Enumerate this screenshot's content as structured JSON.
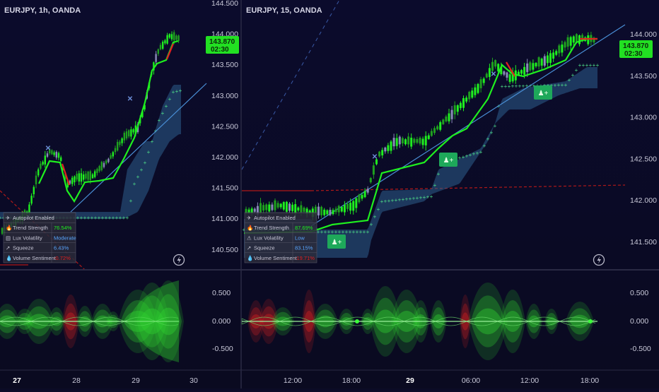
{
  "colors": {
    "background": "#0b0b26",
    "bull": "#1fef1f",
    "bear": "#e02020",
    "band": "#2e5e8c",
    "price_tag": "#22e022",
    "trend_line": "#4a8fd6"
  },
  "left_chart": {
    "title": "EURJPY, 1h, OANDA",
    "price_axis": [
      "144.500",
      "144.000",
      "143.500",
      "143.000",
      "142.500",
      "142.000",
      "141.500",
      "141.000",
      "140.500"
    ],
    "price_tag": {
      "price": "143.870",
      "countdown": "02:30"
    },
    "time_axis": [
      {
        "label": "27",
        "bold": true
      },
      {
        "label": "28",
        "bold": false
      },
      {
        "label": "29",
        "bold": false
      },
      {
        "label": "30",
        "bold": false
      }
    ],
    "stats": [
      {
        "icon": "airplane-icon",
        "label": "Autopilot Enabled",
        "value": ""
      },
      {
        "icon": "flame-icon",
        "label": "Trend Strength",
        "value": "76.54%",
        "color": "#1fef1f"
      },
      {
        "icon": "bars-icon",
        "label": "Lux Volatility",
        "value": "Moderate",
        "color": "#58a6ff"
      },
      {
        "icon": "squeeze-icon",
        "label": "Squeeze",
        "value": "6.43%",
        "color": "#58a6ff"
      },
      {
        "icon": "drop-icon",
        "label": "Volume Sentiment",
        "value": "-0.72%",
        "color": "#e02020"
      }
    ],
    "osc_axis": [
      "0.500",
      "0.000",
      "-0.500"
    ]
  },
  "right_chart": {
    "title": "EURJPY, 15, OANDA",
    "price_axis": [
      "144.000",
      "143.500",
      "143.000",
      "142.500",
      "142.000",
      "141.500"
    ],
    "price_tag": {
      "price": "143.870",
      "countdown": "02:30"
    },
    "time_axis": [
      {
        "label": "12:00",
        "bold": false
      },
      {
        "label": "18:00",
        "bold": false
      },
      {
        "label": "29",
        "bold": true
      },
      {
        "label": "06:00",
        "bold": false
      },
      {
        "label": "12:00",
        "bold": false
      },
      {
        "label": "18:00",
        "bold": false
      }
    ],
    "stats": [
      {
        "icon": "airplane-icon",
        "label": "Autopilot Enabled",
        "value": ""
      },
      {
        "icon": "flame-icon",
        "label": "Trend Strength",
        "value": "87.69%",
        "color": "#1fef1f"
      },
      {
        "icon": "warning-icon",
        "label": "Lux Volatility",
        "value": "Low",
        "color": "#58a6ff"
      },
      {
        "icon": "squeeze-icon",
        "label": "Squeeze",
        "value": "83.15%",
        "color": "#58a6ff"
      },
      {
        "icon": "drop-icon",
        "label": "Volume Sentiment",
        "value": "-19.71%",
        "color": "#e02020"
      }
    ],
    "signal_label": "+",
    "osc_axis": [
      "0.500",
      "0.000",
      "-0.500"
    ]
  },
  "chart_data": [
    {
      "type": "line",
      "title": "EURJPY, 1h, OANDA",
      "xlabel": "",
      "ylabel": "",
      "x": [
        "27",
        "27.5",
        "28",
        "28.25",
        "28.5",
        "28.75",
        "29",
        "29.25",
        "29.5",
        "29.75"
      ],
      "series": [
        {
          "values": [
            141.55,
            142.05,
            141.35,
            141.85,
            141.95,
            142.25,
            142.85,
            143.35,
            143.75,
            144.05
          ]
        }
      ],
      "ylim": [
        140.3,
        144.5
      ]
    },
    {
      "type": "line",
      "title": "EURJPY, 15, OANDA",
      "xlabel": "",
      "ylabel": "",
      "x": [
        "12:00",
        "18:00",
        "29",
        "06:00",
        "12:00",
        "18:00"
      ],
      "series": [
        {
          "values": [
            141.95,
            142.05,
            142.55,
            143.15,
            143.55,
            143.9
          ]
        }
      ],
      "ylim": [
        141.3,
        144.2
      ]
    }
  ]
}
